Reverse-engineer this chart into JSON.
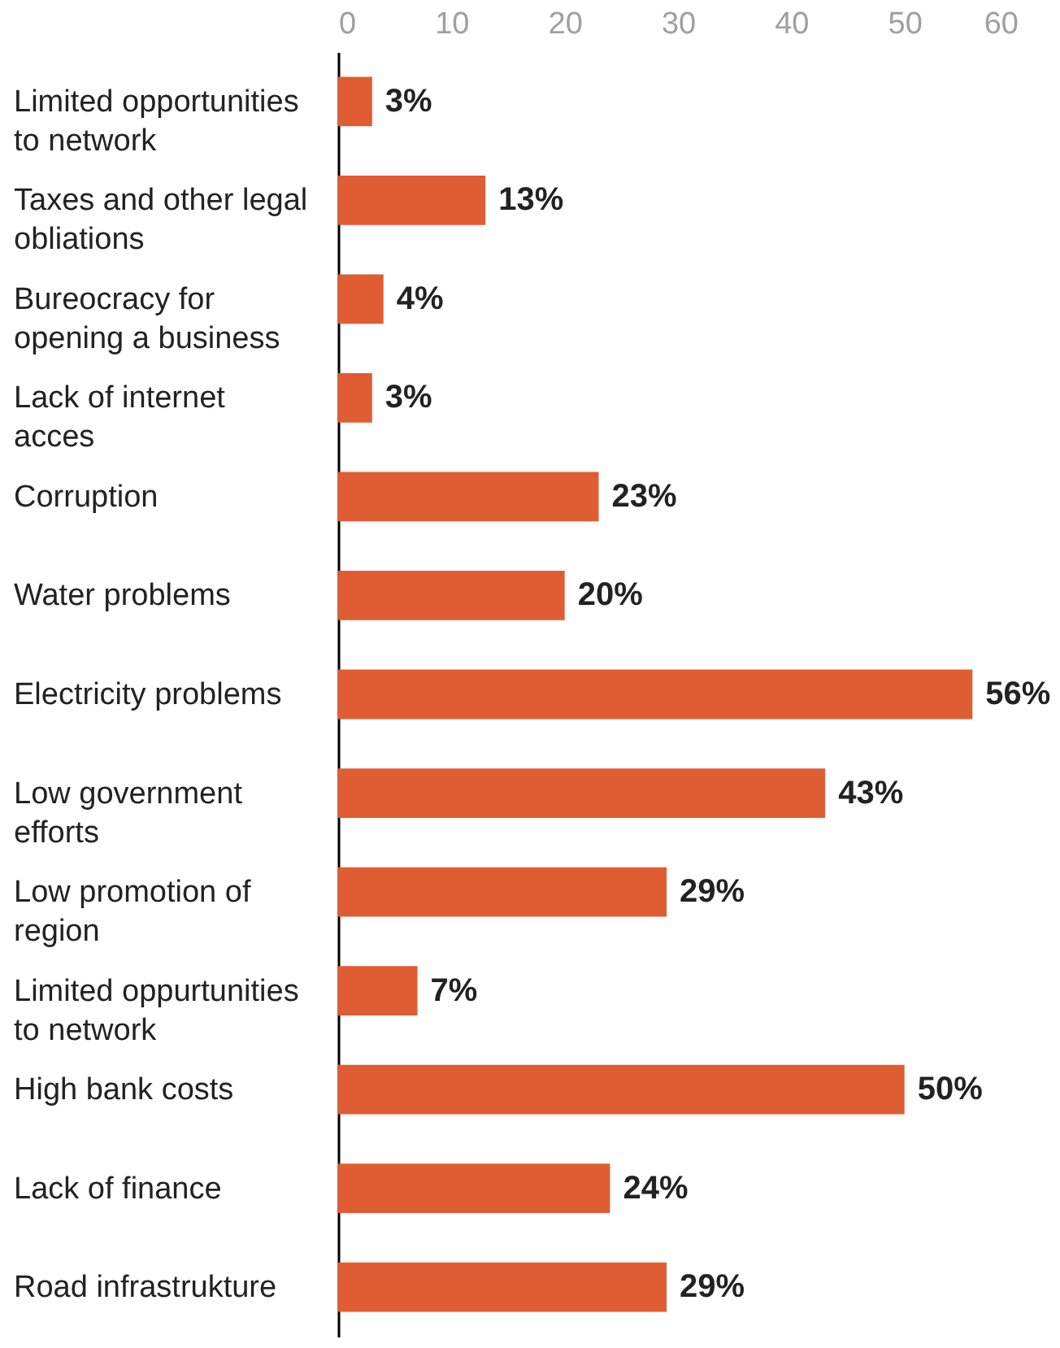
{
  "chart_data": {
    "type": "bar",
    "orientation": "horizontal",
    "categories": [
      "Limited opportunities to network",
      "Taxes and other legal obliations",
      "Bureocracy for opening a business",
      "Lack of internet acces",
      "Corruption",
      "Water problems",
      "Electricity problems",
      "Low government efforts",
      "Low promotion of region",
      "Limited oppurtunities to network",
      "High bank costs",
      "Lack of finance",
      "Road infrastrukture"
    ],
    "values": [
      3,
      13,
      4,
      3,
      23,
      20,
      56,
      43,
      29,
      7,
      50,
      24,
      29
    ],
    "value_labels": [
      "3%",
      "13%",
      "4%",
      "3%",
      "23%",
      "20%",
      "56%",
      "43%",
      "29%",
      "7%",
      "50%",
      "24%",
      "29%"
    ],
    "color": "#e05c33",
    "xlim": [
      0,
      60
    ],
    "xticks": [
      0,
      10,
      20,
      30,
      40,
      50,
      60
    ],
    "grid": false
  }
}
